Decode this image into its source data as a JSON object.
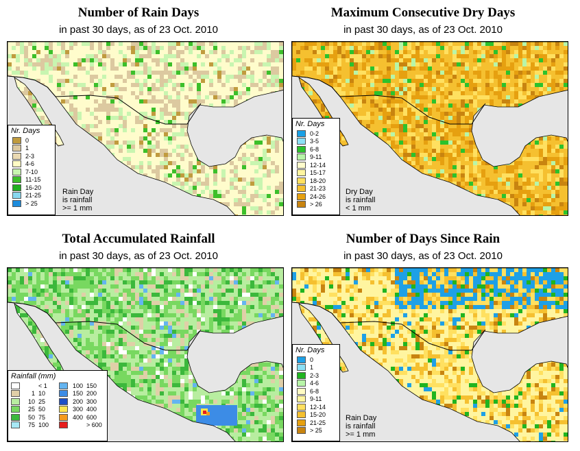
{
  "colors": {
    "land": "#fffccc",
    "water": "#e6e6e6",
    "border": "#000000"
  },
  "panels": [
    {
      "id": "rain_days",
      "title": "Number of Rain Days",
      "subtitle": "in past 30 days, as of  23 Oct. 2010",
      "legend_title": "Nr. Days",
      "legend": [
        {
          "label": "0",
          "color": "#c09b3e"
        },
        {
          "label": "1",
          "color": "#dcc9a0"
        },
        {
          "label": "2-3",
          "color": "#ead9b2"
        },
        {
          "label": "4-6",
          "color": "#fffcc4"
        },
        {
          "label": "7-10",
          "color": "#c8f5b0"
        },
        {
          "label": "11-15",
          "color": "#3cbf2a"
        },
        {
          "label": "16-20",
          "color": "#20b020"
        },
        {
          "label": "21-25",
          "color": "#88d8f0"
        },
        {
          "label": "> 25",
          "color": "#1e8cdc"
        }
      ],
      "note": [
        "Rain Day",
        "is rainfall",
        ">= 1 mm"
      ]
    },
    {
      "id": "max_dry",
      "title": "Maximum Consecutive Dry Days",
      "subtitle": "in past 30 days, as of  23 Oct. 2010",
      "legend_title": "Nr. Days",
      "legend": [
        {
          "label": "0-2",
          "color": "#19a0e6"
        },
        {
          "label": "3-5",
          "color": "#8ce0f5"
        },
        {
          "label": "6-8",
          "color": "#2cc22c"
        },
        {
          "label": "9-11",
          "color": "#b8f5a8"
        },
        {
          "label": "12-14",
          "color": "#fffccc"
        },
        {
          "label": "15-17",
          "color": "#fff5a0"
        },
        {
          "label": "18-20",
          "color": "#ffe060"
        },
        {
          "label": "21-23",
          "color": "#f5c030"
        },
        {
          "label": "24-26",
          "color": "#e6a010"
        },
        {
          "label": "> 26",
          "color": "#c88410"
        }
      ],
      "note": [
        "Dry Day",
        "is rainfall",
        "< 1 mm"
      ]
    },
    {
      "id": "total_rain",
      "title": "Total Accumulated Rainfall",
      "subtitle": "in past 30 days, as of  23 Oct. 2010",
      "legend_title": "Rainfall (mm)",
      "legend": [
        {
          "lo": "",
          "hi": "< 1",
          "color": "#ffffff"
        },
        {
          "lo": "1",
          "hi": "10",
          "color": "#e0cfa8"
        },
        {
          "lo": "10",
          "hi": "25",
          "color": "#b8eda0"
        },
        {
          "lo": "25",
          "hi": "50",
          "color": "#78d860"
        },
        {
          "lo": "50",
          "hi": "75",
          "color": "#3cb83c"
        },
        {
          "lo": "75",
          "hi": "100",
          "color": "#a8e8f5"
        },
        {
          "lo": "100",
          "hi": "150",
          "color": "#64b4f0"
        },
        {
          "lo": "150",
          "hi": "200",
          "color": "#3c8ce6"
        },
        {
          "lo": "200",
          "hi": "300",
          "color": "#1e50c8"
        },
        {
          "lo": "300",
          "hi": "400",
          "color": "#ffe650"
        },
        {
          "lo": "400",
          "hi": "600",
          "color": "#f59a1e"
        },
        {
          "lo": "",
          "hi": "> 600",
          "color": "#e61e1e"
        }
      ],
      "note": []
    },
    {
      "id": "since_rain",
      "title": "Number of Days Since Rain",
      "subtitle": "in past 30 days, as of  23 Oct. 2010",
      "legend_title": "Nr. Days",
      "legend": [
        {
          "label": "0",
          "color": "#1ea0e6"
        },
        {
          "label": "1",
          "color": "#8ce0f5"
        },
        {
          "label": "2-3",
          "color": "#20b420"
        },
        {
          "label": "4-6",
          "color": "#b8f5a8"
        },
        {
          "label": "6-8",
          "color": "#fffcc4"
        },
        {
          "label": "9-11",
          "color": "#fff5a0"
        },
        {
          "label": "12-14",
          "color": "#ffe060"
        },
        {
          "label": "15-20",
          "color": "#f5c030"
        },
        {
          "label": "21-25",
          "color": "#e6a010"
        },
        {
          "label": "> 25",
          "color": "#c88410"
        }
      ],
      "note": [
        "Rain Day",
        "is rainfall",
        ">= 1 mm"
      ]
    }
  ]
}
